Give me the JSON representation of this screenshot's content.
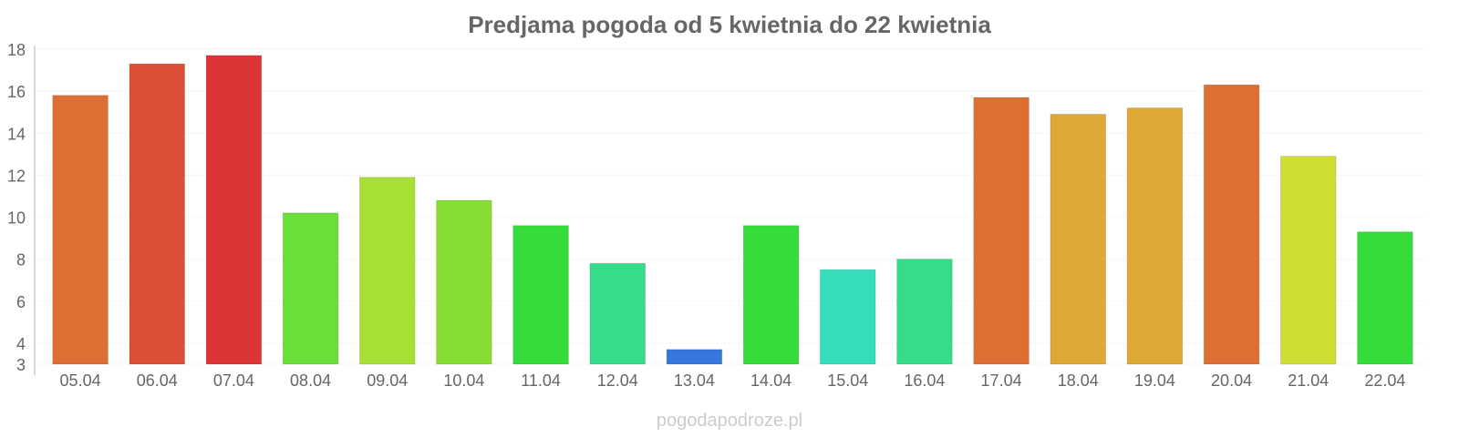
{
  "chart_data": {
    "type": "bar",
    "title": "Predjama pogoda od 5 kwietnia do 22 kwietnia",
    "xlabel": "",
    "ylabel": "",
    "ylim": [
      3,
      18
    ],
    "yticks": [
      3,
      4,
      6,
      8,
      10,
      12,
      14,
      16,
      18
    ],
    "grid": true,
    "categories": [
      "05.04",
      "06.04",
      "07.04",
      "08.04",
      "09.04",
      "10.04",
      "11.04",
      "12.04",
      "13.04",
      "14.04",
      "15.04",
      "16.04",
      "17.04",
      "18.04",
      "19.04",
      "20.04",
      "21.04",
      "22.04"
    ],
    "values": [
      15.8,
      17.3,
      17.7,
      10.2,
      11.9,
      10.8,
      9.6,
      7.8,
      3.7,
      9.6,
      7.5,
      8.0,
      15.7,
      14.9,
      15.2,
      16.3,
      12.9,
      9.3
    ],
    "colors": [
      "#dd6f35",
      "#dc5035",
      "#db3535",
      "#6adf3a",
      "#a8df35",
      "#88dd35",
      "#35dd3a",
      "#35dd8a",
      "#3577dd",
      "#35dd3a",
      "#35ddbb",
      "#35dd8a",
      "#dd6f35",
      "#dda835",
      "#dda835",
      "#dd6f35",
      "#cfdd35",
      "#35dd3a"
    ]
  },
  "footer": "pogodapodroze.pl"
}
